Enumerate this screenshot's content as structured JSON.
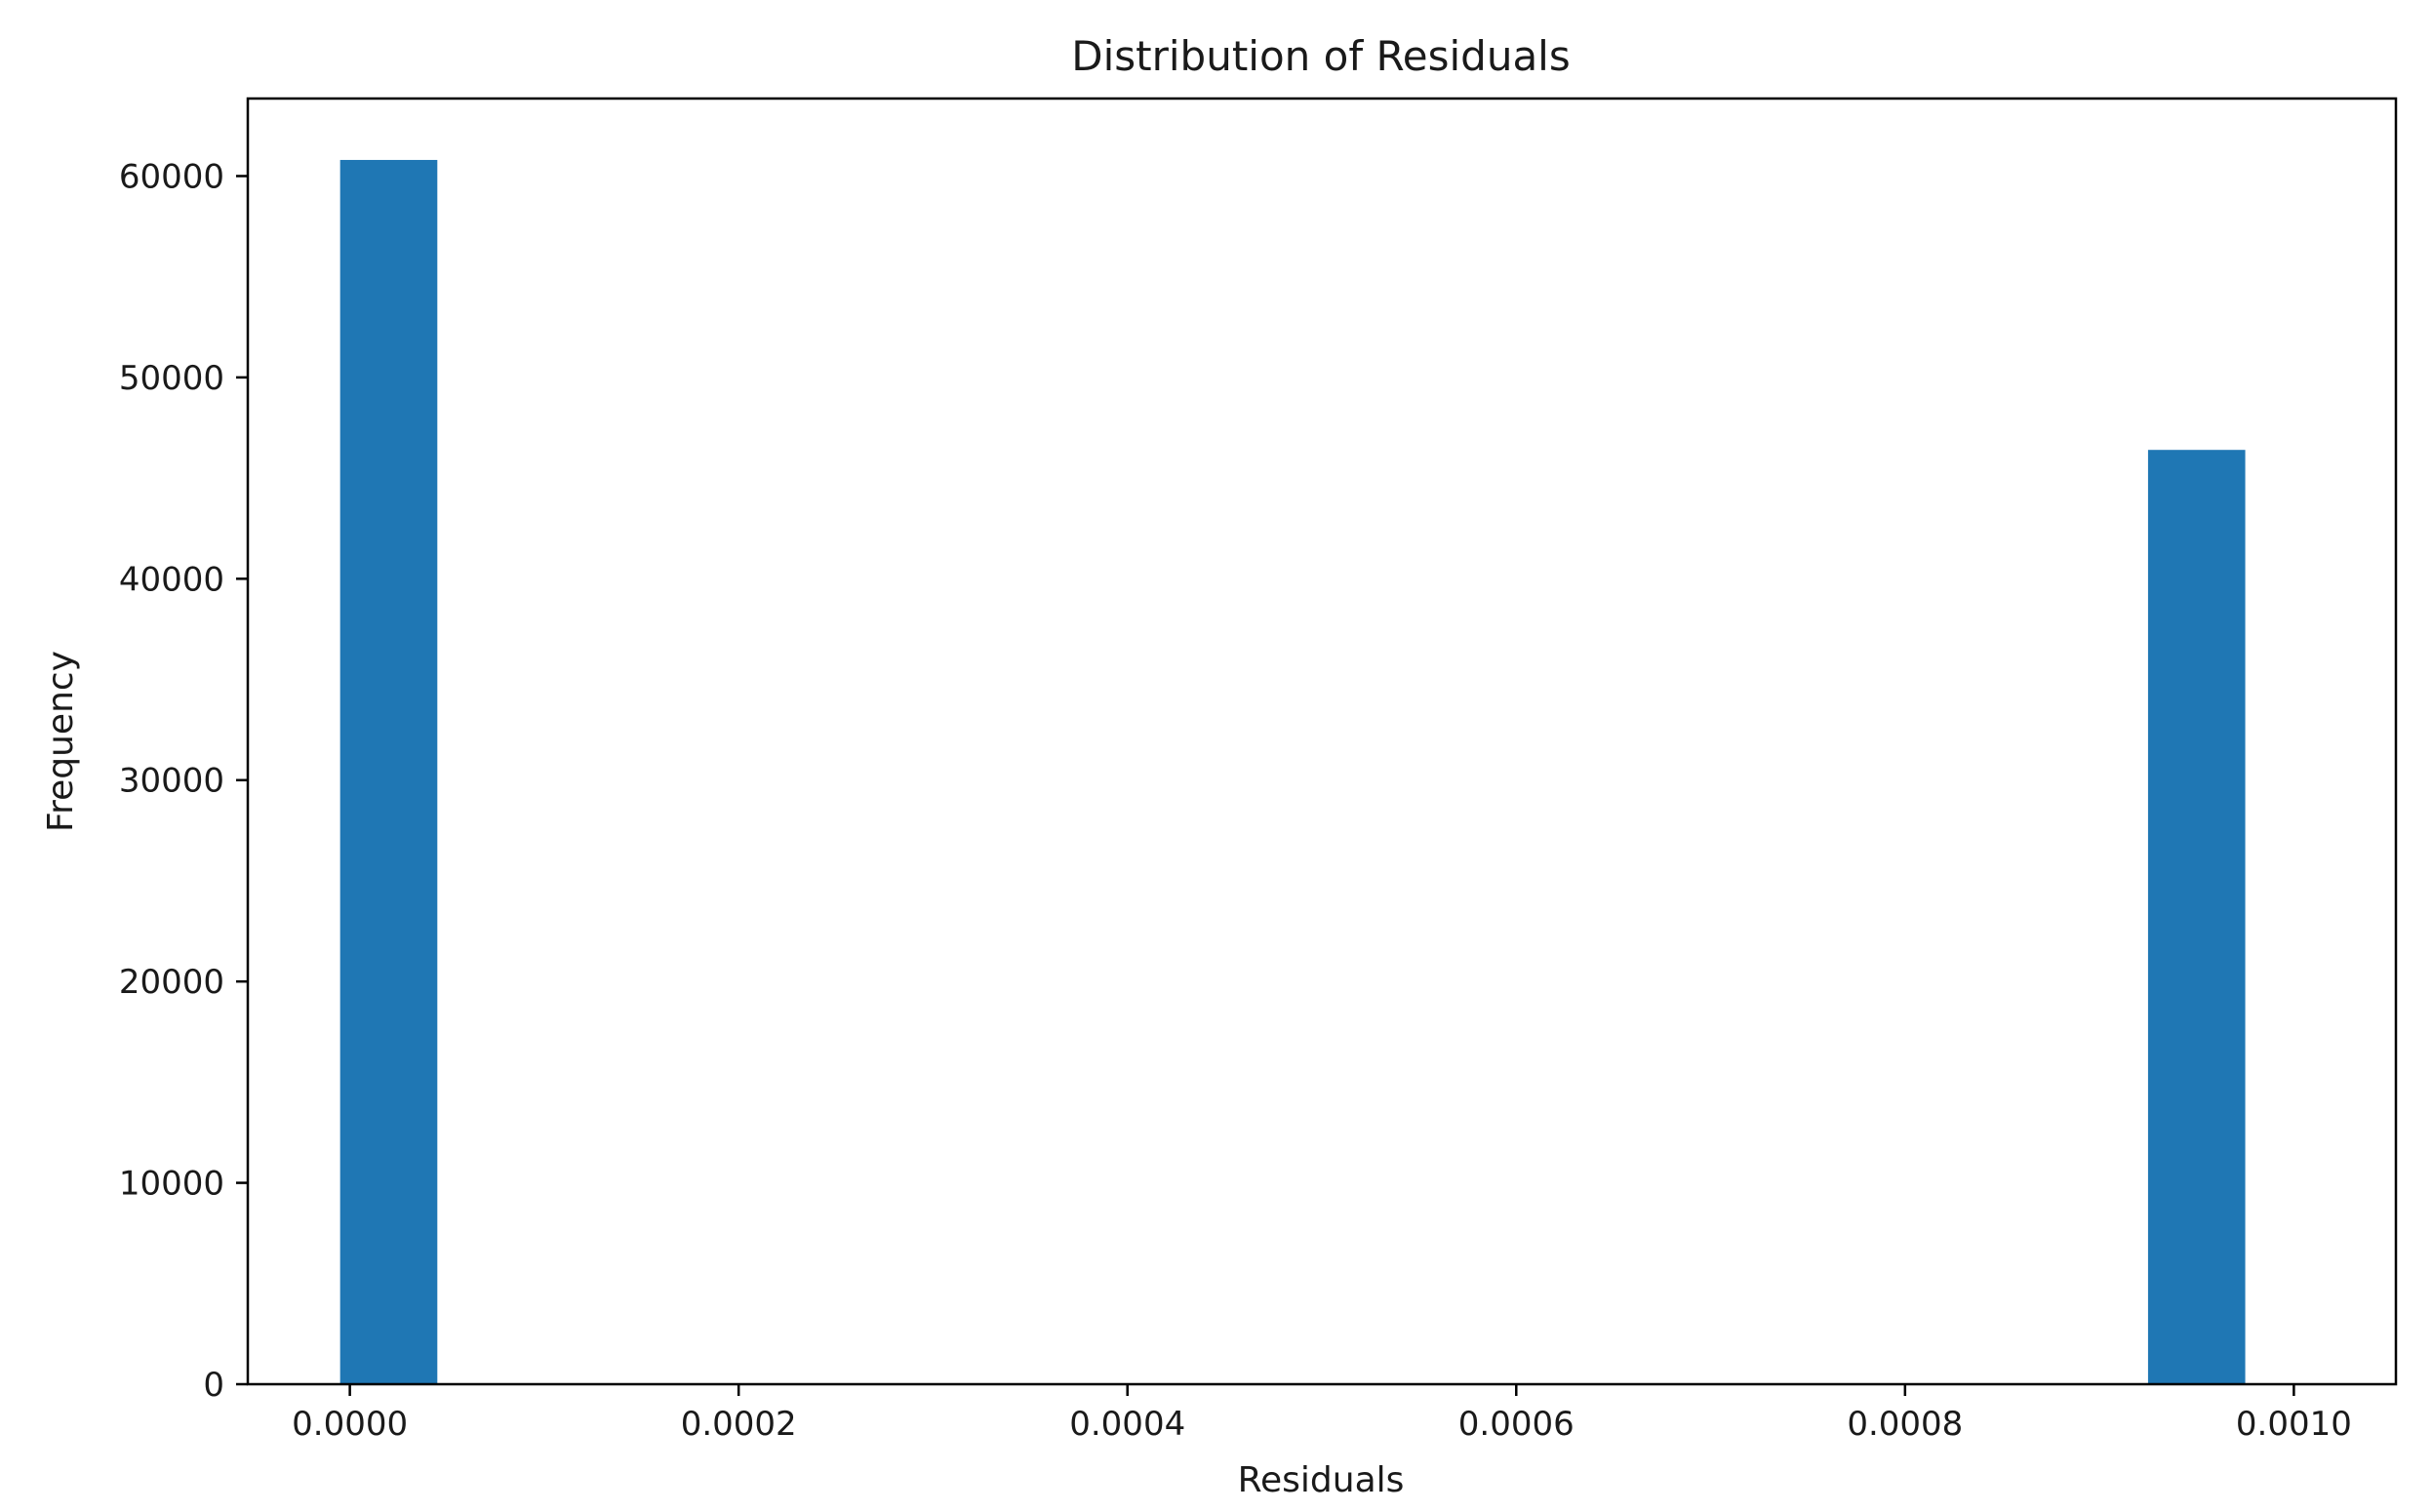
{
  "chart_data": {
    "type": "bar",
    "title": "Distribution of Residuals",
    "xlabel": "Residuals",
    "ylabel": "Frequency",
    "xlim": [
      -5.25e-05,
      0.0010525
    ],
    "ylim": [
      0,
      63850
    ],
    "xticks": [
      0.0,
      0.0002,
      0.0004,
      0.0006,
      0.0008,
      0.001
    ],
    "xtick_labels": [
      "0.0000",
      "0.0002",
      "0.0004",
      "0.0006",
      "0.0008",
      "0.0010"
    ],
    "yticks": [
      0,
      10000,
      20000,
      30000,
      40000,
      50000,
      60000
    ],
    "ytick_labels": [
      "0",
      "10000",
      "20000",
      "30000",
      "40000",
      "50000",
      "60000"
    ],
    "bin_width": 5e-05,
    "bins": [
      {
        "x0": -5e-06,
        "x1": 4.5e-05,
        "value": 60800
      },
      {
        "x0": 0.000925,
        "x1": 0.000975,
        "value": 46400
      }
    ],
    "grid": false,
    "bar_color": "#1f77b4"
  }
}
